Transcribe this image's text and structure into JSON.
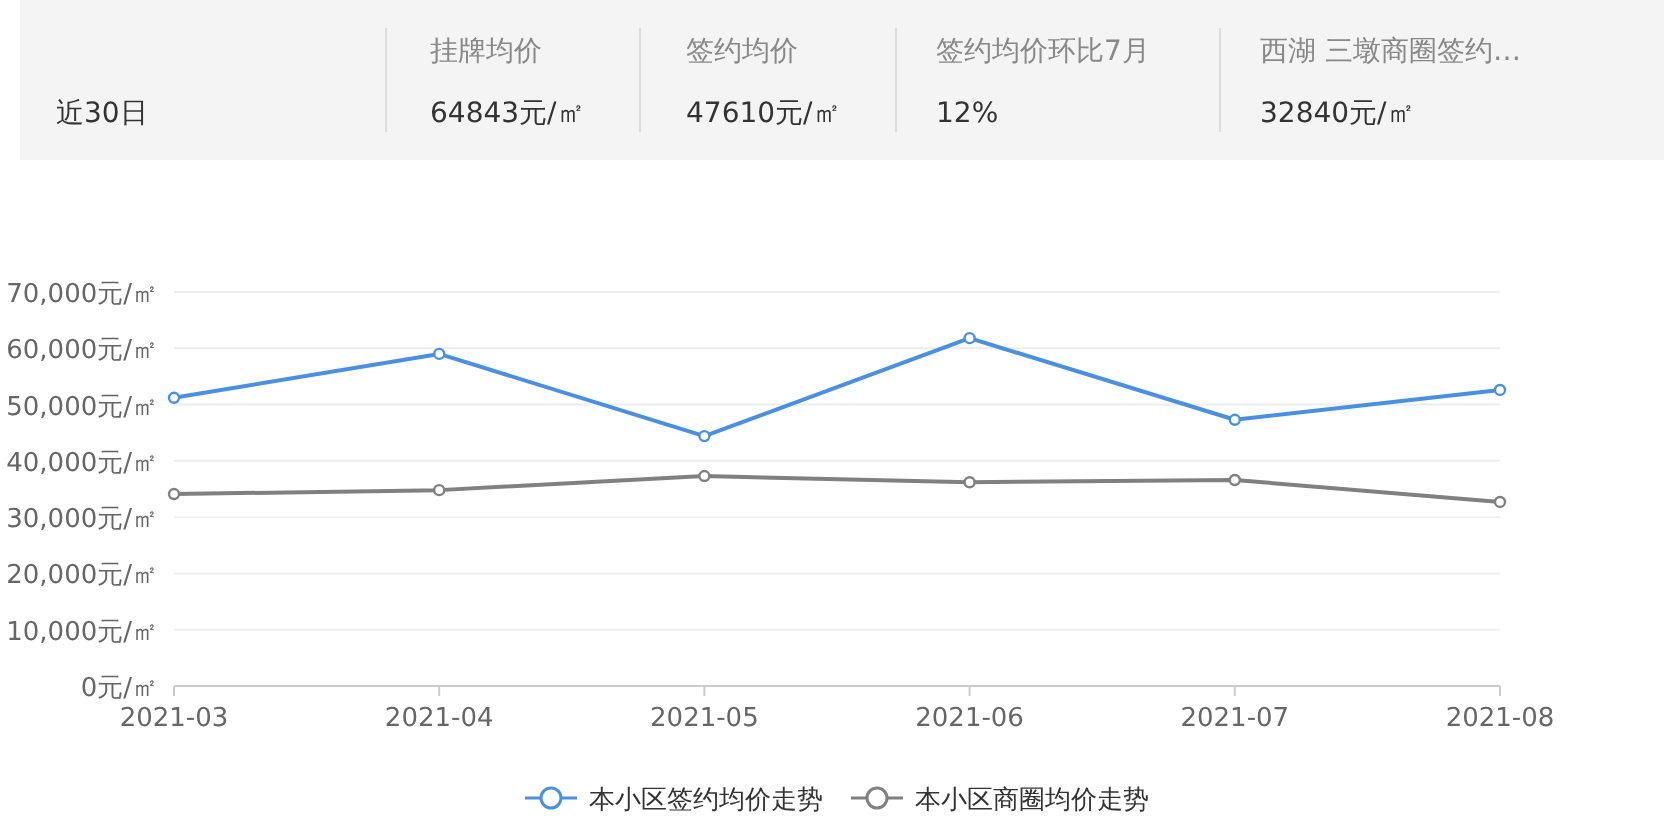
{
  "chart_data": [
    {
      "type": "other",
      "categories": [
        null,
        "挂牌均价",
        "签约均价",
        "签约均价环比7月",
        "西湖 三墩商圈签约…"
      ],
      "annotations": [
        "近30日",
        "64843元/㎡",
        "47610元/㎡",
        "12%",
        "32840元/㎡"
      ]
    },
    {
      "type": "line",
      "categories": [
        "2021-03",
        "2021-04",
        "2021-05",
        "2021-06",
        "2021-07",
        "2021-08"
      ],
      "series": [
        {
          "name": "本小区签约均价走势",
          "color": "#4a90e2",
          "values": [
            51200,
            59000,
            44400,
            61800,
            47300,
            52600
          ]
        },
        {
          "name": "本小区商圈均价走势",
          "color": "#808080",
          "values": [
            34100,
            34800,
            37300,
            36200,
            36600,
            32700
          ]
        }
      ],
      "ylim": [
        0,
        70000
      ],
      "yticks": [
        {
          "value": 0,
          "label": "0元/㎡"
        },
        {
          "value": 10000,
          "label": "10,000元/㎡"
        },
        {
          "value": 20000,
          "label": "20,000元/㎡"
        },
        {
          "value": 30000,
          "label": "30,000元/㎡"
        },
        {
          "value": 40000,
          "label": "40,000元/㎡"
        },
        {
          "value": 50000,
          "label": "50,000元/㎡"
        },
        {
          "value": 60000,
          "label": "60,000元/㎡"
        },
        {
          "value": 70000,
          "label": "70,000元/㎡"
        }
      ],
      "grid": "y",
      "legend": "bottom",
      "marker": "circle",
      "line_style": "solid"
    }
  ]
}
